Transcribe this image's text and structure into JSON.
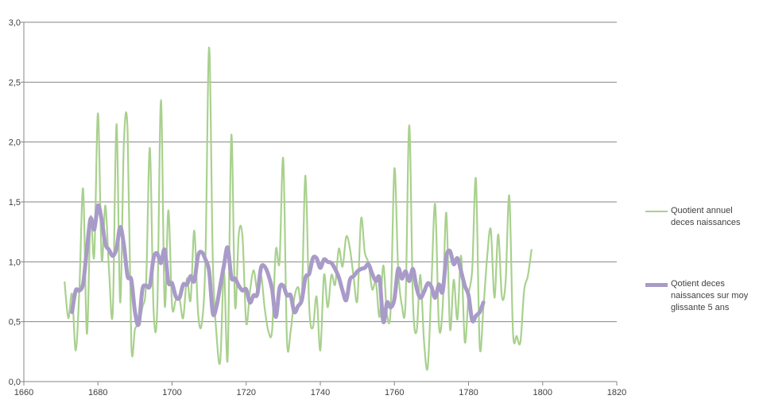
{
  "chart_data": {
    "type": "line",
    "title": "",
    "xlabel": "",
    "ylabel": "",
    "xlim": [
      1660,
      1820
    ],
    "ylim": [
      0,
      3
    ],
    "x_ticks": [
      1660,
      1680,
      1700,
      1720,
      1740,
      1760,
      1780,
      1800,
      1820
    ],
    "x_tick_labels": [
      "1660",
      "1680",
      "1700",
      "1720",
      "1740",
      "1760",
      "1780",
      "1800",
      "1820"
    ],
    "y_ticks": [
      0,
      0.5,
      1,
      1.5,
      2,
      2.5,
      3
    ],
    "y_tick_labels": [
      "0,0",
      "0,5",
      "1,0",
      "1,5",
      "2,0",
      "2,5",
      "3,0"
    ],
    "grid": "horizontal",
    "legend_position": "right",
    "series": [
      {
        "name": "Quotient annuel deces naissances",
        "color": "#a9d18e",
        "x_start": 1671,
        "x_step": 1,
        "values": [
          0.83,
          0.53,
          0.73,
          0.26,
          0.78,
          1.61,
          0.4,
          1.37,
          1.05,
          2.24,
          1.02,
          1.47,
          0.92,
          0.58,
          2.15,
          0.66,
          2.0,
          2.09,
          0.31,
          0.44,
          0.49,
          0.62,
          0.83,
          1.95,
          0.6,
          0.61,
          2.35,
          0.64,
          1.43,
          0.63,
          0.68,
          0.69,
          0.53,
          0.86,
          0.68,
          1.26,
          0.58,
          0.48,
          1.02,
          2.79,
          1.0,
          0.39,
          0.17,
          0.92,
          0.19,
          2.06,
          0.63,
          1.23,
          1.21,
          0.49,
          0.75,
          0.93,
          0.76,
          0.89,
          0.61,
          0.42,
          0.43,
          1.1,
          1.0,
          1.86,
          0.35,
          0.42,
          0.7,
          0.79,
          0.7,
          1.72,
          0.63,
          0.45,
          0.71,
          0.26,
          0.89,
          0.62,
          0.89,
          0.81,
          1.11,
          0.96,
          1.21,
          1.11,
          0.87,
          0.68,
          1.36,
          1.08,
          0.99,
          0.77,
          0.83,
          0.54,
          0.97,
          0.56,
          0.61,
          1.78,
          0.95,
          0.64,
          0.66,
          2.14,
          0.67,
          0.42,
          0.89,
          0.33,
          0.12,
          0.82,
          1.48,
          0.47,
          0.61,
          1.41,
          0.44,
          0.85,
          0.52,
          1.05,
          0.33,
          0.72,
          0.94,
          1.69,
          0.3,
          0.61,
          1.03,
          1.27,
          0.7,
          1.23,
          0.71,
          0.83,
          1.55,
          0.41,
          0.38,
          0.33,
          0.76,
          0.88,
          1.1
        ]
      },
      {
        "name": "Qotient deces naissances sur moy glissante 5 ans",
        "color": "#a99bc8",
        "x_start": 1673,
        "x_step": 1,
        "values": [
          0.58,
          0.76,
          0.76,
          0.82,
          1.1,
          1.36,
          1.27,
          1.47,
          1.35,
          1.15,
          1.1,
          1.05,
          1.11,
          1.29,
          1.14,
          0.88,
          0.85,
          0.58,
          0.48,
          0.77,
          0.8,
          0.8,
          1.03,
          1.07,
          0.99,
          1.1,
          0.83,
          0.82,
          0.71,
          0.7,
          0.81,
          0.81,
          0.88,
          0.84,
          1.05,
          1.08,
          1.02,
          0.92,
          0.57,
          0.63,
          0.8,
          0.97,
          1.12,
          0.87,
          0.86,
          0.8,
          0.76,
          0.77,
          0.66,
          0.72,
          0.73,
          0.95,
          0.96,
          0.89,
          0.77,
          0.54,
          0.78,
          0.8,
          0.72,
          0.72,
          0.58,
          0.63,
          0.68,
          0.87,
          0.9,
          1.03,
          1.03,
          0.95,
          1.02,
          1.0,
          0.99,
          0.94,
          0.87,
          0.76,
          0.68,
          0.85,
          0.88,
          0.92,
          0.94,
          0.95,
          0.98,
          0.9,
          0.84,
          0.86,
          0.5,
          0.66,
          0.62,
          0.69,
          0.94,
          0.86,
          0.92,
          0.84,
          0.94,
          0.78,
          0.7,
          0.75,
          0.82,
          0.79,
          0.7,
          0.81,
          0.75,
          1.04,
          1.09,
          0.98,
          1.03,
          0.92,
          0.8,
          0.72,
          0.51,
          0.55,
          0.58,
          0.66
        ]
      }
    ]
  }
}
